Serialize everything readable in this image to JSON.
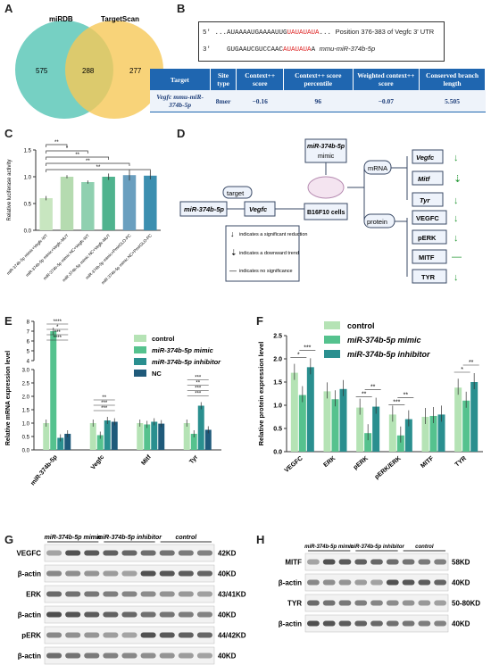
{
  "panels": {
    "A": "A",
    "B": "B",
    "C": "C",
    "D": "D",
    "E": "E",
    "F": "F",
    "G": "G",
    "H": "H"
  },
  "venn": {
    "left_label": "miRDB",
    "right_label": "TargetScan",
    "left_only": "575",
    "overlap": "288",
    "right_only": "277",
    "left_color": "#5ec8b8",
    "right_color": "#f6c857"
  },
  "sequence": {
    "line1_prefix": "5' ...AUAAAAUGAAAAUUG",
    "line1_red": "UAUAUAUA",
    "line1_suffix": "...",
    "line1_note": "Position 376-383 of Vegfc 3' UTR",
    "line2_prefix": "3'",
    "line2_seq": "GUGAAUCGUCCAAC",
    "line2_red": "AUAUAUA",
    "line2_suffix": "A",
    "line2_name": "mmu-miR-374b-5p"
  },
  "table": {
    "headers": [
      "Target",
      "Site type",
      "Context++ score",
      "Context++ score percentile",
      "Weighted context++ score",
      "Conserved branch length"
    ],
    "row": [
      "Vegfc mmu-miR-374b-5p",
      "8mer",
      "−0.16",
      "96",
      "−0.07",
      "5.505"
    ]
  },
  "chart_data": [
    {
      "panel": "C",
      "type": "bar",
      "ylabel": "Relative luciferase activity",
      "ylim": [
        0,
        1.5
      ],
      "yticks": [
        "0.0",
        "0.5",
        "1.0",
        "1.5"
      ],
      "categories": [
        "miR-374b-5p mimic+Vegfc-WT",
        "miR-374b-5p mimic+Vegfc-MUT",
        "miR-374b-5p mimic NC+Vegfc-WT",
        "miR-374b-5p mimic NC+Vegfc-MUT",
        "miR-374b-5p mimic+PmirGLO-PC",
        "miR-374b-5p mimic NC+PmirGLO-PC"
      ],
      "values": [
        0.6,
        1.0,
        0.9,
        1.0,
        1.03,
        1.02
      ],
      "errors": [
        0.04,
        0.03,
        0.03,
        0.06,
        0.1,
        0.07
      ],
      "colors": [
        "#c8e6c0",
        "#b5dbb0",
        "#8fd0b0",
        "#4fb38e",
        "#6a9fbf",
        "#3c8fb0"
      ],
      "significance": [
        "**",
        "*",
        "**",
        "**",
        "**"
      ]
    },
    {
      "panel": "E",
      "type": "bar",
      "ylabel": "Relative mRNA expression level",
      "yticks": [
        "0.0",
        "0.5",
        "1.0",
        "1.5",
        "2.0",
        "2.5",
        "3.0",
        "4",
        "5",
        "6",
        "7",
        "8"
      ],
      "categories": [
        "miR-374b-5p",
        "Vegfc",
        "Mitf",
        "Tyr"
      ],
      "series": [
        {
          "name": "control",
          "values": [
            1.0,
            1.0,
            1.0,
            1.0
          ],
          "color": "#b5e3b5"
        },
        {
          "name": "miR-374b-5p mimic",
          "values": [
            7.0,
            0.55,
            0.95,
            0.6
          ],
          "color": "#55c28e"
        },
        {
          "name": "miR-374b-5p inhibitor",
          "values": [
            0.45,
            1.1,
            1.05,
            1.65
          ],
          "color": "#2a8f8f"
        },
        {
          "name": "NC",
          "values": [
            0.6,
            1.05,
            0.98,
            0.75
          ],
          "color": "#1f5a7a"
        }
      ],
      "significance": [
        "****",
        "*",
        "***",
        "****",
        "**",
        "***",
        "***",
        "***",
        "**",
        "***",
        "***"
      ]
    },
    {
      "panel": "F",
      "type": "bar",
      "ylabel": "Relative protein expression level",
      "ylim": [
        0,
        2.5
      ],
      "yticks": [
        "0.0",
        "0.5",
        "1.0",
        "1.5",
        "2.0",
        "2.5"
      ],
      "categories": [
        "VEGFC",
        "ERK",
        "pERK",
        "pERK/ERK",
        "MITF",
        "TYR"
      ],
      "series": [
        {
          "name": "control",
          "values": [
            1.7,
            1.3,
            0.95,
            0.8,
            0.75,
            1.38
          ],
          "color": "#b5e3b5"
        },
        {
          "name": "miR-374b-5p mimic",
          "values": [
            1.22,
            1.13,
            0.4,
            0.35,
            0.77,
            1.1
          ],
          "color": "#55c28e"
        },
        {
          "name": "miR-374b-5p inhibitor",
          "values": [
            1.82,
            1.35,
            0.97,
            0.7,
            0.8,
            1.5
          ],
          "color": "#2a8f8f"
        }
      ],
      "significance": [
        "*",
        "***",
        "**",
        "**",
        "***",
        "**",
        "*",
        "**"
      ]
    }
  ],
  "diagram": {
    "mirna": "miR-374b-5p",
    "target": "target",
    "gene": "Vegfc",
    "mimic": "miR-374b-5p",
    "mimic_sub": "mimic",
    "cells": "B16F10 cells",
    "mrna": "mRNA",
    "protein": "protein",
    "mrna_items": [
      "Vegfc",
      "Mitf",
      "Tyr"
    ],
    "protein_items": [
      "VEGFC",
      "pERK",
      "MITF",
      "TYR"
    ],
    "legend": [
      "indicates a significant reduction",
      "indicates a downward trend",
      "indicates no significance"
    ]
  },
  "blots": {
    "G_groups": [
      "miR-374b-5p mimic",
      "miR-374b-5p inhibitor",
      "control"
    ],
    "G_rows": [
      {
        "label": "VEGFC",
        "size": "42KD"
      },
      {
        "label": "β-actin",
        "size": "40KD"
      },
      {
        "label": "ERK",
        "size": "43/41KD"
      },
      {
        "label": "β-actin",
        "size": "40KD"
      },
      {
        "label": "pERK",
        "size": "44/42KD"
      },
      {
        "label": "β-actin",
        "size": "40KD"
      }
    ],
    "H_groups": [
      "miR-374b-5p mimic",
      "miR-374b-5p inhibitor",
      "control"
    ],
    "H_rows": [
      {
        "label": "MITF",
        "size": "58KD"
      },
      {
        "label": "β-actin",
        "size": "40KD"
      },
      {
        "label": "TYR",
        "size": "50-80KD"
      },
      {
        "label": "β-actin",
        "size": "40KD"
      }
    ]
  }
}
